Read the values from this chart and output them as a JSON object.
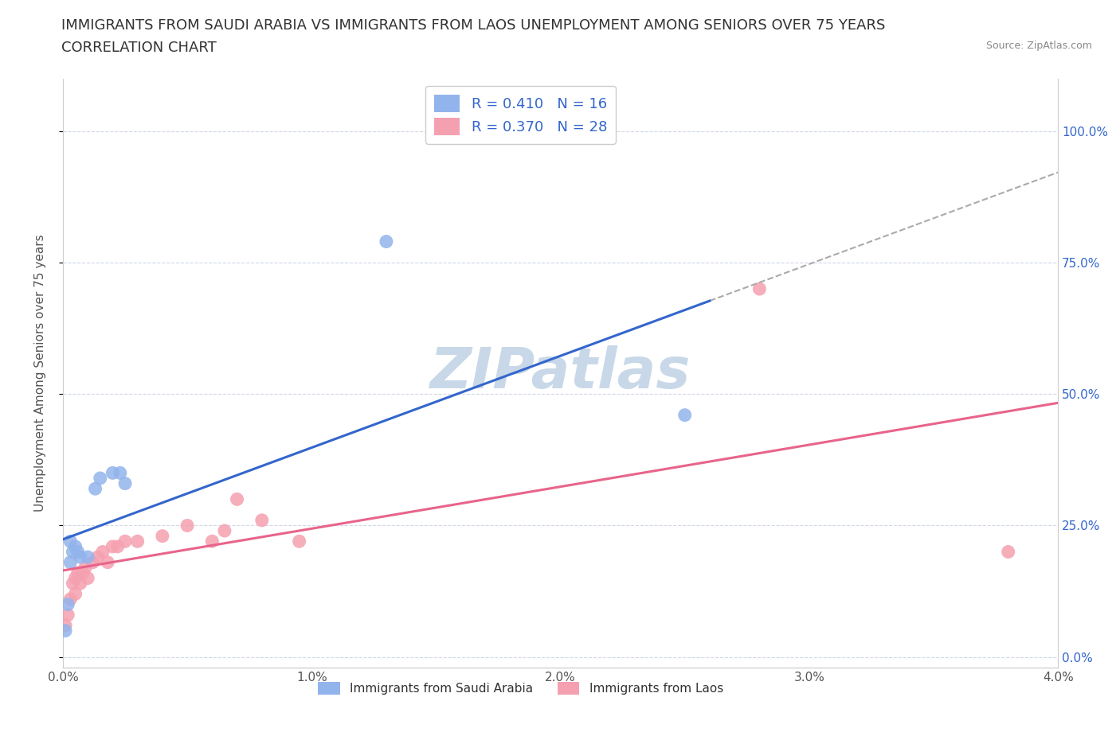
{
  "title_line1": "IMMIGRANTS FROM SAUDI ARABIA VS IMMIGRANTS FROM LAOS UNEMPLOYMENT AMONG SENIORS OVER 75 YEARS",
  "title_line2": "CORRELATION CHART",
  "source": "Source: ZipAtlas.com",
  "ylabel": "Unemployment Among Seniors over 75 years",
  "xlim": [
    0.0,
    0.04
  ],
  "ylim": [
    -0.02,
    1.1
  ],
  "xticks": [
    0.0,
    0.01,
    0.02,
    0.03,
    0.04
  ],
  "xticklabels": [
    "0.0%",
    "1.0%",
    "2.0%",
    "3.0%",
    "4.0%"
  ],
  "yticks": [
    0.0,
    0.25,
    0.5,
    0.75,
    1.0
  ],
  "yticklabels": [
    "0.0%",
    "25.0%",
    "50.0%",
    "75.0%",
    "100.0%"
  ],
  "saudi_color": "#92b4ec",
  "laos_color": "#f5a0b0",
  "saudi_line_color": "#3366cc",
  "laos_line_color": "#e8648a",
  "watermark": "ZIPatlas",
  "watermark_color": "#c8d8e8",
  "R_saudi": 0.41,
  "N_saudi": 16,
  "R_laos": 0.37,
  "N_laos": 28,
  "legend_label_saudi": "Immigrants from Saudi Arabia",
  "legend_label_laos": "Immigrants from Laos",
  "saudi_x": [
    0.0001,
    0.0002,
    0.0003,
    0.0003,
    0.0004,
    0.0005,
    0.0006,
    0.0007,
    0.001,
    0.0013,
    0.0015,
    0.002,
    0.0023,
    0.0025,
    0.013,
    0.025
  ],
  "saudi_y": [
    0.05,
    0.1,
    0.18,
    0.22,
    0.2,
    0.21,
    0.2,
    0.19,
    0.19,
    0.32,
    0.34,
    0.35,
    0.35,
    0.33,
    0.79,
    0.46
  ],
  "laos_x": [
    0.0001,
    0.0002,
    0.0003,
    0.0004,
    0.0005,
    0.0005,
    0.0006,
    0.0007,
    0.0008,
    0.0009,
    0.001,
    0.0012,
    0.0014,
    0.0016,
    0.0018,
    0.002,
    0.0022,
    0.0025,
    0.003,
    0.004,
    0.005,
    0.006,
    0.0065,
    0.007,
    0.008,
    0.0095,
    0.028,
    0.038
  ],
  "laos_y": [
    0.06,
    0.08,
    0.11,
    0.14,
    0.12,
    0.15,
    0.16,
    0.14,
    0.16,
    0.17,
    0.15,
    0.18,
    0.19,
    0.2,
    0.18,
    0.21,
    0.21,
    0.22,
    0.22,
    0.23,
    0.25,
    0.22,
    0.24,
    0.3,
    0.26,
    0.22,
    0.7,
    0.2
  ],
  "background_color": "#ffffff",
  "grid_color": "#d0d8e8",
  "title_fontsize": 13,
  "subtitle_fontsize": 13,
  "axis_fontsize": 11,
  "tick_fontsize": 11,
  "right_tick_color": "#3366cc",
  "saudi_line_start_x": 0.0,
  "saudi_line_end_x": 0.026,
  "dashed_line_start_x": 0.026,
  "dashed_line_end_x": 0.04
}
